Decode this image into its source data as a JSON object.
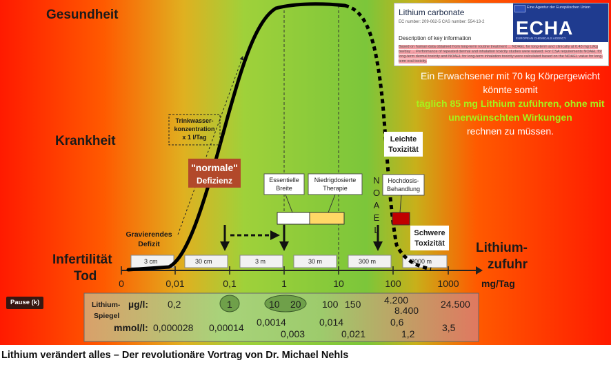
{
  "video": {
    "title": "Lithium verändert alles – Der revolutionäre Vortrag von Dr. Michael Nehls",
    "pause_label": "Pause (k)"
  },
  "slide": {
    "y_levels": {
      "health": "Gesundheit",
      "disease": "Krankheit",
      "infertility": "Infertilität",
      "death": "Tod"
    },
    "x_axis": {
      "label_line1": "Lithium-",
      "label_line2": "zufuhr",
      "unit": "mg/Tag",
      "ticks": [
        "0",
        "0,01",
        "0,1",
        "1",
        "10",
        "100",
        "1000"
      ],
      "water_volumes": [
        "3 cm",
        "30 cm",
        "3 m",
        "30 m",
        "300 m",
        "3000 m"
      ]
    },
    "labels": {
      "drinking_water": [
        "Trinkwasser-",
        "konzentration",
        "x 1 l/Tag"
      ],
      "severe_deficit": [
        "Gravierendes",
        "Defizit"
      ],
      "normal": "\"normale\"",
      "deficiency": "Defizienz",
      "essential": [
        "Essentielle",
        "Breite"
      ],
      "low_dose": [
        "Niedrigdosierte",
        "Therapie"
      ],
      "noael": [
        "N",
        "O",
        "A",
        "E",
        "L"
      ],
      "high_dose": [
        "Hochdosis-",
        "Behandlung"
      ],
      "mild_tox": [
        "Leichte",
        "Toxizität"
      ],
      "severe_tox": [
        "Schwere",
        "Toxizität"
      ]
    },
    "blood_table": {
      "title_line1": "Lithium-",
      "title_line2": "Spiegel",
      "unit_ugl": "µg/l:",
      "unit_mmol": "mmol/l:",
      "ugl_values": [
        "0,2",
        "1",
        "10",
        "20",
        "100",
        "150",
        "4.200",
        "8.400",
        "24.500"
      ],
      "mmol_values": [
        "0,000028",
        "0,00014",
        "0,0014",
        "0,003",
        "0,014",
        "0,021",
        "0,6",
        "1,2",
        "3,5"
      ]
    },
    "echa_doc": {
      "substance": "Lithium carbonate",
      "ids": "EC number: 209-062-5        CAS number: 554-13-2",
      "section": "Description of key information",
      "body": "Based on human data obtained from long-term routine treatment ... NOAEL for long-term and clinically at 0.43 mg Li/kg bw/day ... Performance of repeated dermal and inhalation toxicity studies were waived. For CSA requirements NOAEL for long-term dermal toxicity and NOAEL for long-term inhalation toxicity were calculated based on the NOAEL value for long-term oral toxicity.",
      "logo_agency": "Eine Agentur der Europäischen Union",
      "logo_text": "ECHA",
      "logo_sub": "EUROPEAN CHEMICALS AGENCY"
    },
    "right_text": {
      "line1": "Ein Erwachsener mit 70 kg Körpergewicht",
      "line2": "könnte somit",
      "line3": "täglich 85 mg Lithium zuführen, ohne mit",
      "line4": "unerwünschten Wirkungen",
      "line5": "rechnen zu müssen."
    },
    "colors": {
      "red": "#ff1a00",
      "green": "#7cc63a",
      "light_green": "#a7d664",
      "yellow_highlight": "#a7f21b",
      "deficiency_box": "#b2492a",
      "low_dose_fill": "#ffd866",
      "high_dose_fill": "#c00000"
    }
  }
}
